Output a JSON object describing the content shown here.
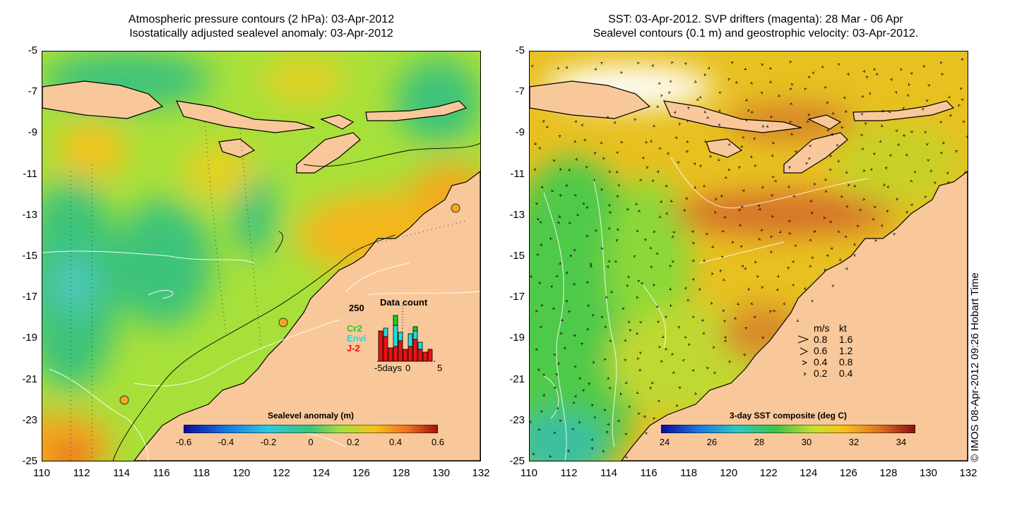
{
  "panels": {
    "left_title_line1": "Atmospheric pressure contours (2 hPa): 03-Apr-2012",
    "left_title_line2": "Isostatically adjusted sealevel anomaly: 03-Apr-2012",
    "right_title_line1": "SST: 03-Apr-2012. SVP drifters (magenta): 28 Mar - 06 Apr",
    "right_title_line2": "Sealevel contours (0.1 m) and geostrophic velocity: 03-Apr-2012."
  },
  "axes": {
    "y_ticks": [
      "-5",
      "-7",
      "-9",
      "-11",
      "-13",
      "-15",
      "-17",
      "-19",
      "-21",
      "-23",
      "-25"
    ],
    "x_ticks": [
      "110",
      "112",
      "114",
      "116",
      "118",
      "120",
      "122",
      "124",
      "126",
      "128",
      "130",
      "132"
    ],
    "lon_range": [
      110,
      132
    ],
    "lat_range": [
      -25,
      -5
    ]
  },
  "colorbars": {
    "left_title": "Sealevel anomaly (m)",
    "left_labels": [
      "-0.6",
      "-0.4",
      "-0.2",
      "0",
      "0.2",
      "0.4",
      "0.6"
    ],
    "right_title": "3-day SST composite (deg C)",
    "right_labels": [
      "24",
      "26",
      "28",
      "30",
      "32",
      "34"
    ]
  },
  "inset": {
    "title": "Data count",
    "ymax_label": "250",
    "x_labels": [
      "-5days",
      "0",
      "5"
    ],
    "satellites": [
      {
        "name": "Cr2",
        "color": "#22cc22"
      },
      {
        "name": "Envi",
        "color": "#22dddd"
      },
      {
        "name": "J-2",
        "color": "#ee1111"
      }
    ]
  },
  "speed_legend": {
    "header_ms": "m/s",
    "header_kt": "kt",
    "rows": [
      {
        "ms": "0.8",
        "kt": "1.6"
      },
      {
        "ms": "0.6",
        "kt": "1.2"
      },
      {
        "ms": "0.4",
        "kt": "0.8"
      },
      {
        "ms": "0.2",
        "kt": "0.4"
      }
    ]
  },
  "credit": "© IMOS 08-Apr-2012 09:26 Hobart Time",
  "colors": {
    "land": "#f9c89a",
    "sla_high": "#f4a81e",
    "sla_mid": "#a8e03a",
    "sla_low": "#3cc37a",
    "sst_warm": "#d5702a",
    "sst_mid": "#e8c020",
    "sst_cool": "#4fc94a"
  }
}
